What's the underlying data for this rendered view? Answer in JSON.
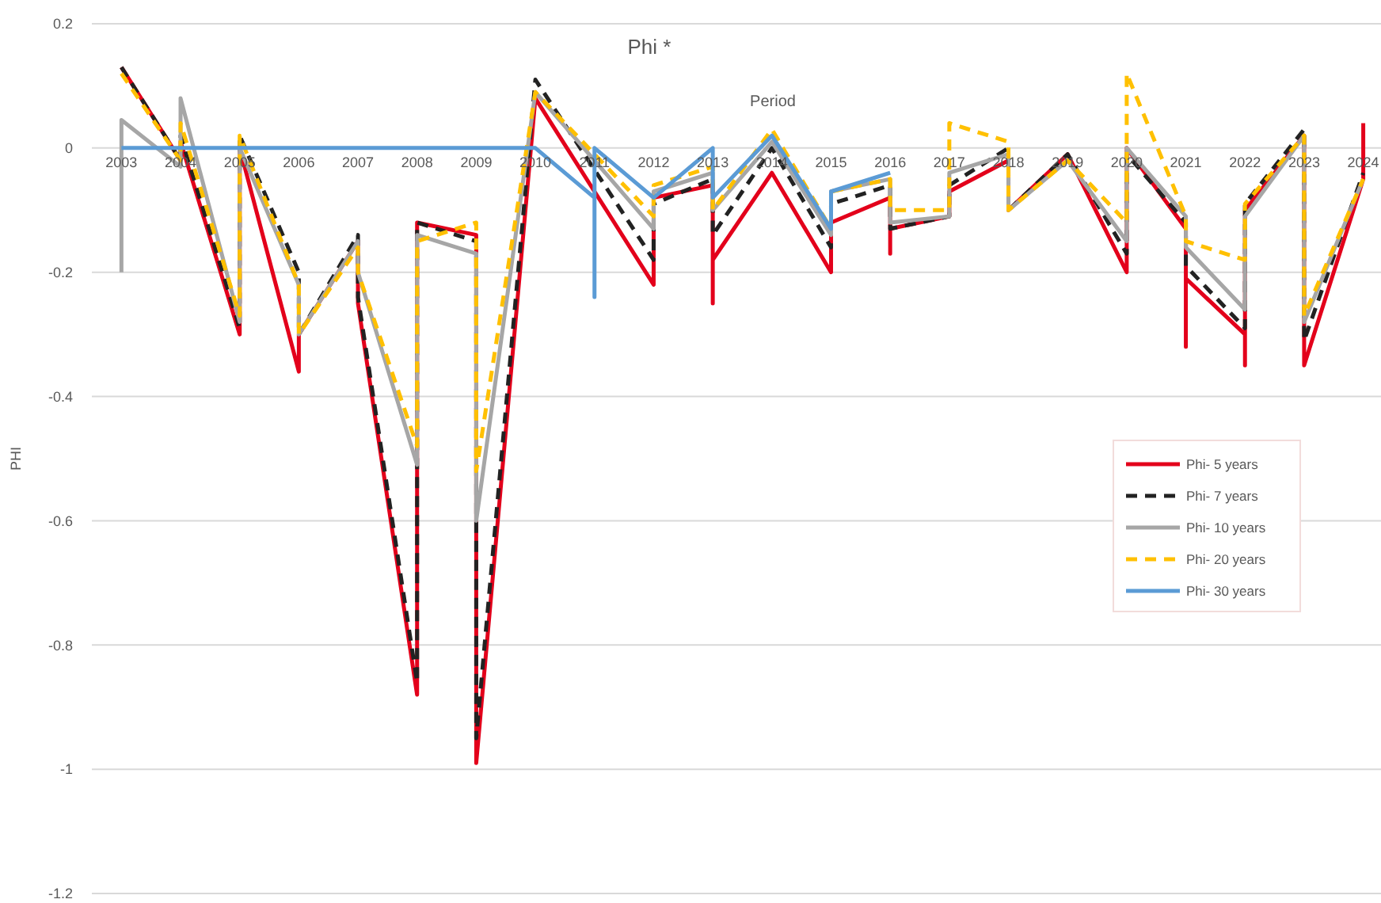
{
  "chart_data": {
    "type": "line",
    "title": "Phi *",
    "xlabel": "Period",
    "ylabel": "PHI",
    "xlim": [
      2002.5,
      2024.3
    ],
    "xticks": [
      2003,
      2004,
      2005,
      2006,
      2007,
      2008,
      2009,
      2010,
      2011,
      2012,
      2013,
      2014,
      2015,
      2016,
      2017,
      2018,
      2019,
      2020,
      2021,
      2022,
      2023,
      2024
    ],
    "ylim": [
      -1.2,
      0.2
    ],
    "yticks": [
      0.2,
      0,
      -0.2,
      -0.4,
      -0.6,
      -0.8,
      -1,
      -1.2
    ],
    "grid": "y",
    "legend": "right",
    "marker": "none",
    "series": [
      {
        "name": "Phi- 5 years",
        "color": "#e3001b",
        "line_style": "solid",
        "x": [
          2003,
          2004,
          2004,
          2005,
          2005,
          2006,
          2006,
          2007,
          2007,
          2008,
          2008,
          2009,
          2009,
          2010,
          2012,
          2012,
          2013,
          2013,
          2013,
          2014,
          2015,
          2015,
          2016,
          2016,
          2016,
          2017,
          2017,
          2018,
          2018,
          2019,
          2020,
          2020,
          2021,
          2021,
          2021,
          2022,
          2022,
          2022,
          2023,
          2023,
          2024,
          2024
        ],
        "values": [
          0.13,
          -0.02,
          0.01,
          -0.3,
          0,
          -0.36,
          -0.3,
          -0.15,
          -0.25,
          -0.88,
          -0.12,
          -0.14,
          -0.99,
          0.08,
          -0.22,
          -0.08,
          -0.06,
          -0.25,
          -0.18,
          -0.04,
          -0.2,
          -0.12,
          -0.08,
          -0.17,
          -0.13,
          -0.11,
          -0.07,
          -0.02,
          -0.1,
          -0.01,
          -0.2,
          0,
          -0.13,
          -0.32,
          -0.21,
          -0.3,
          -0.35,
          -0.1,
          0.02,
          -0.35,
          -0.05,
          0.04
        ]
      },
      {
        "name": "Phi- 7 years",
        "color": "#222222",
        "line_style": "dashed",
        "x": [
          2003,
          2004,
          2004,
          2005,
          2005,
          2006,
          2006,
          2007,
          2007,
          2008,
          2008,
          2009,
          2009,
          2010,
          2012,
          2012,
          2013,
          2013,
          2014,
          2015,
          2015,
          2016,
          2016,
          2017,
          2017,
          2018,
          2018,
          2019,
          2020,
          2020,
          2021,
          2021,
          2022,
          2022,
          2023,
          2023,
          2024
        ],
        "values": [
          0.13,
          -0.02,
          0.02,
          -0.29,
          0.02,
          -0.2,
          -0.3,
          -0.14,
          -0.24,
          -0.86,
          -0.12,
          -0.15,
          -0.95,
          0.11,
          -0.18,
          -0.09,
          -0.05,
          -0.14,
          0.0,
          -0.16,
          -0.09,
          -0.06,
          -0.13,
          -0.11,
          -0.06,
          0.0,
          -0.1,
          -0.01,
          -0.17,
          -0.01,
          -0.12,
          -0.19,
          -0.29,
          -0.09,
          0.03,
          -0.31,
          -0.04
        ]
      },
      {
        "name": "Phi- 10 years",
        "color": "#a6a6a6",
        "line_style": "solid",
        "x": [
          2003,
          2003,
          2004,
          2004,
          2005,
          2005,
          2006,
          2006,
          2007,
          2007,
          2008,
          2008,
          2009,
          2009,
          2010,
          2012,
          2012,
          2013,
          2013,
          2014,
          2015,
          2015,
          2016,
          2016,
          2017,
          2017,
          2018,
          2018,
          2019,
          2020,
          2020,
          2021,
          2021,
          2022,
          2022,
          2023,
          2023,
          2024
        ],
        "values": [
          -0.2,
          0.045,
          -0.03,
          0.08,
          -0.28,
          0,
          -0.22,
          -0.3,
          -0.15,
          -0.2,
          -0.51,
          -0.14,
          -0.17,
          -0.6,
          0.09,
          -0.13,
          -0.07,
          -0.04,
          -0.1,
          0.01,
          -0.14,
          -0.07,
          -0.05,
          -0.12,
          -0.11,
          -0.04,
          -0.01,
          -0.1,
          -0.02,
          -0.15,
          0,
          -0.11,
          -0.16,
          -0.26,
          -0.11,
          0.02,
          -0.28,
          -0.05
        ]
      },
      {
        "name": "Phi- 20 years",
        "color": "#ffc000",
        "line_style": "dashed",
        "x": [
          2003,
          2004,
          2004,
          2005,
          2005,
          2006,
          2006,
          2007,
          2007,
          2008,
          2008,
          2009,
          2009,
          2010,
          2012,
          2012,
          2013,
          2013,
          2014,
          2015,
          2015,
          2016,
          2016,
          2017,
          2017,
          2018,
          2018,
          2019,
          2020,
          2020,
          2021,
          2021,
          2022,
          2022,
          2023,
          2023,
          2024
        ],
        "values": [
          0.12,
          -0.02,
          0.04,
          -0.27,
          0.02,
          -0.22,
          -0.3,
          -0.16,
          -0.2,
          -0.48,
          -0.15,
          -0.12,
          -0.52,
          0.09,
          -0.11,
          -0.06,
          -0.03,
          -0.1,
          0.03,
          -0.13,
          -0.07,
          -0.05,
          -0.1,
          -0.1,
          0.04,
          0.01,
          -0.1,
          -0.02,
          -0.12,
          0.12,
          -0.11,
          -0.15,
          -0.18,
          -0.09,
          0.02,
          -0.27,
          -0.05
        ]
      },
      {
        "name": "Phi- 30 years",
        "color": "#5b9bd5",
        "line_style": "solid",
        "x": [
          2003,
          2010,
          2011,
          2011,
          2011,
          2012,
          2013,
          2013,
          2014,
          2015,
          2015,
          2016
        ],
        "values": [
          0,
          0,
          -0.08,
          -0.24,
          0,
          -0.08,
          0,
          -0.08,
          0.02,
          -0.13,
          -0.07,
          -0.04
        ]
      }
    ]
  }
}
